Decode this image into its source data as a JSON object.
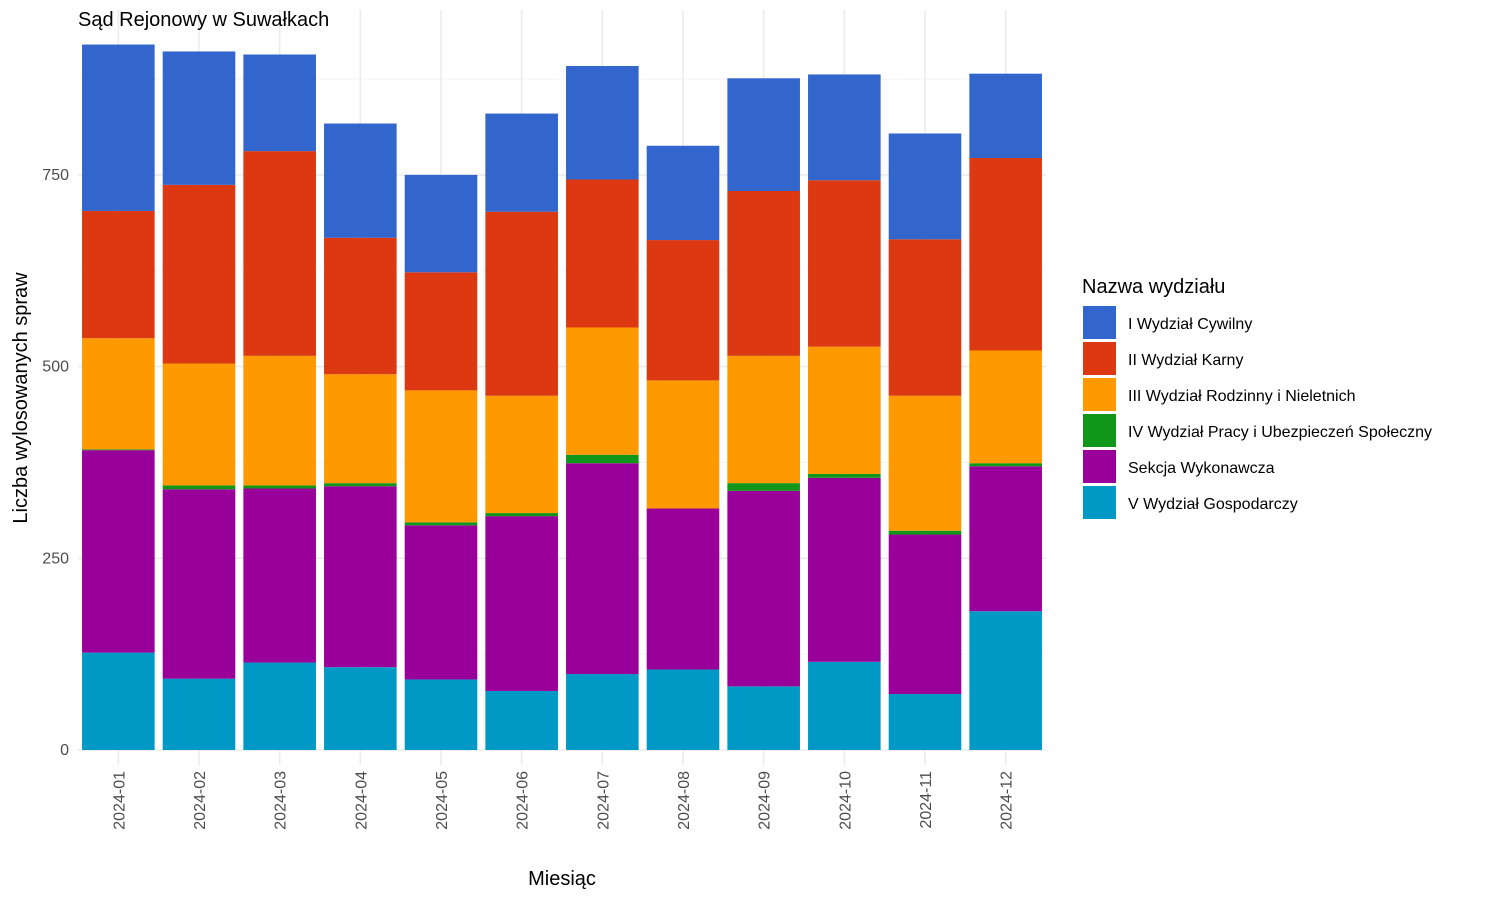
{
  "chart_data": {
    "type": "bar",
    "stacked": true,
    "title": "Sąd Rejonowy w Suwałkach",
    "xlabel": "Miesiąc",
    "ylabel": "Liczba wylosowanych spraw",
    "ylim": [
      0,
      960
    ],
    "yticks": [
      0,
      250,
      500,
      750
    ],
    "grid": true,
    "legend_title": "Nazwa wydziału",
    "legend_position": "right",
    "categories": [
      "2024-01",
      "2024-02",
      "2024-03",
      "2024-04",
      "2024-05",
      "2024-06",
      "2024-07",
      "2024-08",
      "2024-09",
      "2024-10",
      "2024-11",
      "2024-12"
    ],
    "stack_order_bottom_to_top": [
      "V Wydział Gospodarczy",
      "Sekcja Wykonawcza",
      "IV Wydział Pracy i Ubezpieczeń Społeczny",
      "III Wydział Rodzinny i Nieletnich",
      "II Wydział Karny",
      "I Wydział Cywilny"
    ],
    "series": [
      {
        "name": "I Wydział Cywilny",
        "color": "#3366CC",
        "values": [
          217,
          174,
          126,
          149,
          127,
          128,
          148,
          123,
          147,
          138,
          138,
          110
        ]
      },
      {
        "name": "II Wydział Karny",
        "color": "#DC3912",
        "values": [
          166,
          233,
          267,
          178,
          154,
          240,
          193,
          183,
          215,
          217,
          204,
          251
        ]
      },
      {
        "name": "III Wydział Rodzinny i Nieletnich",
        "color": "#FF9900",
        "values": [
          145,
          159,
          169,
          142,
          172,
          153,
          166,
          167,
          166,
          166,
          176,
          147
        ]
      },
      {
        "name": "IV Wydział Pracy i Ubezpieczeń Społeczny",
        "color": "#109618",
        "values": [
          1,
          5,
          4,
          4,
          4,
          4,
          11,
          0,
          10,
          5,
          5,
          4
        ]
      },
      {
        "name": "Sekcja Wykonawcza",
        "color": "#990099",
        "values": [
          264,
          247,
          227,
          236,
          201,
          228,
          275,
          210,
          255,
          240,
          208,
          189
        ]
      },
      {
        "name": "V Wydział Gospodarczy",
        "color": "#0099C6",
        "values": [
          127,
          93,
          114,
          108,
          92,
          77,
          99,
          105,
          83,
          115,
          73,
          181
        ]
      }
    ]
  }
}
